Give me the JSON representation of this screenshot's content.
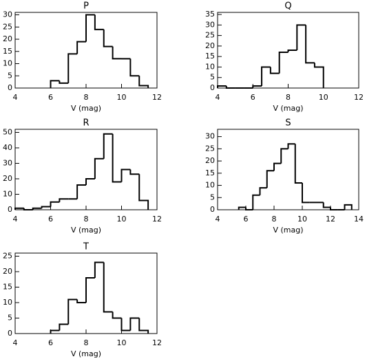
{
  "chart_data": [
    {
      "type": "histogram",
      "title": "P",
      "xlabel": "V (mag)",
      "bins": [
        6,
        6.5,
        7,
        7.5,
        8,
        8.5,
        9,
        9.5,
        10,
        10.5,
        11,
        11.5
      ],
      "values": [
        3,
        2,
        14,
        19,
        30,
        24,
        17,
        12,
        12,
        5,
        1
      ],
      "xlim": [
        4,
        12
      ],
      "xticks": [
        4,
        6,
        8,
        10,
        12
      ],
      "ylim": [
        0,
        31
      ],
      "yticks": [
        0,
        5,
        10,
        15,
        20,
        25,
        30
      ],
      "color": "#000000"
    },
    {
      "type": "histogram",
      "title": "Q",
      "xlabel": "V (mag)",
      "bins": [
        4,
        4.5,
        5,
        5.5,
        6,
        6.5,
        7,
        7.5,
        8,
        8.5,
        9,
        9.5,
        10
      ],
      "values": [
        1,
        0,
        0,
        0,
        1,
        10,
        7,
        17,
        18,
        30,
        12,
        10
      ],
      "xlim": [
        4,
        12
      ],
      "xticks": [
        4,
        6,
        8,
        10,
        12
      ],
      "ylim": [
        0,
        36
      ],
      "yticks": [
        0,
        5,
        10,
        15,
        20,
        25,
        30,
        35
      ],
      "color": "#000000"
    },
    {
      "type": "histogram",
      "title": "R",
      "xlabel": "V (mag)",
      "bins": [
        4,
        4.5,
        5,
        5.5,
        6,
        6.5,
        7,
        7.5,
        8,
        8.5,
        9,
        9.5,
        10,
        10.5,
        11,
        11.5
      ],
      "values": [
        1,
        0,
        1,
        2,
        5,
        7,
        7,
        16,
        20,
        33,
        49,
        18,
        26,
        23,
        6
      ],
      "xlim": [
        4,
        12
      ],
      "xticks": [
        4,
        6,
        8,
        10,
        12
      ],
      "ylim": [
        0,
        52
      ],
      "yticks": [
        0,
        10,
        20,
        30,
        40,
        50
      ],
      "color": "#000000"
    },
    {
      "type": "histogram",
      "title": "S",
      "xlabel": "V (mag)",
      "bins": [
        5.5,
        6,
        6.5,
        7,
        7.5,
        8,
        8.5,
        9,
        9.5,
        10,
        10.5,
        11,
        11.5,
        12,
        12.5,
        13,
        13.5
      ],
      "values": [
        1,
        0,
        6,
        9,
        16,
        19,
        25,
        27,
        11,
        3,
        3,
        3,
        1,
        0,
        0,
        2
      ],
      "xlim": [
        4,
        14
      ],
      "xticks": [
        4,
        6,
        8,
        10,
        12,
        14
      ],
      "ylim": [
        0,
        33
      ],
      "yticks": [
        0,
        5,
        10,
        15,
        20,
        25,
        30
      ],
      "color": "#000000"
    },
    {
      "type": "histogram",
      "title": "T",
      "xlabel": "V (mag)",
      "bins": [
        6,
        6.5,
        7,
        7.5,
        8,
        8.5,
        9,
        9.5,
        10,
        10.5,
        11,
        11.5
      ],
      "values": [
        1,
        3,
        11,
        10,
        18,
        23,
        7,
        5,
        1,
        5,
        1
      ],
      "xlim": [
        4,
        12
      ],
      "xticks": [
        4,
        6,
        8,
        10,
        12
      ],
      "ylim": [
        0,
        26
      ],
      "yticks": [
        0,
        5,
        10,
        15,
        20,
        25
      ],
      "color": "#000000"
    }
  ]
}
